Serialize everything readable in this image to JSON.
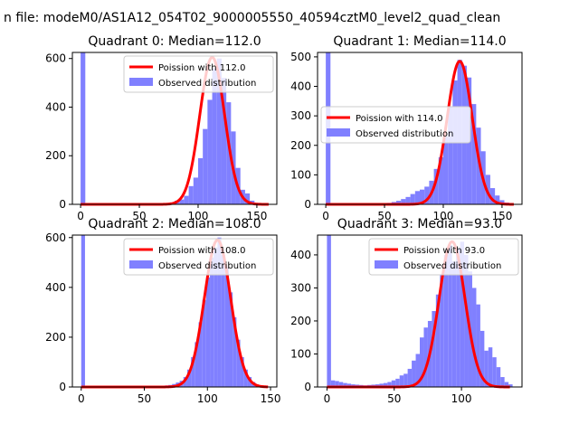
{
  "figure": {
    "suptitle": "n file: modeM0/AS1A12_054T02_9000005550_40594cztM0_level2_quad_clean"
  },
  "chart_data": [
    {
      "type": "bar",
      "title": "Quadrant 0: Median=112.0",
      "xlim": [
        -7,
        167
      ],
      "ylim": [
        0,
        625
      ],
      "xticks": [
        0,
        50,
        100,
        150
      ],
      "yticks": [
        0,
        200,
        400,
        600
      ],
      "median": 112.0,
      "legend_position": "top-right",
      "series": [
        {
          "name": "Poission with 112.0",
          "kind": "line",
          "color": "#ff0000",
          "lambda": 112,
          "peak": 605,
          "x_range": [
            0,
            160
          ]
        },
        {
          "name": "Observed distribution",
          "kind": "histogram",
          "color": "#8080ff",
          "bin_width": 4,
          "bins": [
            [
              0,
              625
            ],
            [
              40,
              1
            ],
            [
              44,
              1
            ],
            [
              48,
              1
            ],
            [
              52,
              1
            ],
            [
              56,
              1
            ],
            [
              60,
              1
            ],
            [
              64,
              1
            ],
            [
              68,
              1
            ],
            [
              72,
              4
            ],
            [
              76,
              8
            ],
            [
              80,
              15
            ],
            [
              84,
              20
            ],
            [
              88,
              35
            ],
            [
              92,
              75
            ],
            [
              96,
              110
            ],
            [
              100,
              190
            ],
            [
              104,
              310
            ],
            [
              108,
              430
            ],
            [
              112,
              560
            ],
            [
              116,
              600
            ],
            [
              120,
              520
            ],
            [
              124,
              420
            ],
            [
              128,
              300
            ],
            [
              132,
              150
            ],
            [
              136,
              60
            ],
            [
              140,
              45
            ],
            [
              144,
              15
            ],
            [
              148,
              6
            ],
            [
              152,
              3
            ],
            [
              156,
              1
            ]
          ]
        }
      ]
    },
    {
      "type": "bar",
      "title": "Quadrant 1: Median=114.0",
      "xlim": [
        -7,
        167
      ],
      "ylim": [
        0,
        515
      ],
      "xticks": [
        0,
        50,
        100,
        150
      ],
      "yticks": [
        0,
        100,
        200,
        300,
        400,
        500
      ],
      "median": 114.0,
      "legend_position": "center-left",
      "series": [
        {
          "name": "Poission with 114.0",
          "kind": "line",
          "color": "#ff0000",
          "lambda": 114,
          "peak": 485,
          "x_range": [
            0,
            160
          ]
        },
        {
          "name": "Observed distribution",
          "kind": "histogram",
          "color": "#8080ff",
          "bin_width": 4,
          "bins": [
            [
              0,
              515
            ],
            [
              48,
              3
            ],
            [
              52,
              5
            ],
            [
              56,
              8
            ],
            [
              60,
              12
            ],
            [
              64,
              18
            ],
            [
              68,
              25
            ],
            [
              72,
              35
            ],
            [
              76,
              45
            ],
            [
              80,
              50
            ],
            [
              84,
              60
            ],
            [
              88,
              80
            ],
            [
              92,
              120
            ],
            [
              96,
              160
            ],
            [
              100,
              230
            ],
            [
              104,
              330
            ],
            [
              108,
              420
            ],
            [
              112,
              490
            ],
            [
              116,
              470
            ],
            [
              120,
              430
            ],
            [
              124,
              340
            ],
            [
              128,
              260
            ],
            [
              132,
              180
            ],
            [
              136,
              100
            ],
            [
              140,
              55
            ],
            [
              144,
              30
            ],
            [
              148,
              14
            ],
            [
              152,
              6
            ],
            [
              156,
              2
            ]
          ]
        }
      ]
    },
    {
      "type": "bar",
      "title": "Quadrant 2: Median=108.0",
      "xlim": [
        -7,
        155
      ],
      "ylim": [
        0,
        610
      ],
      "xticks": [
        0,
        50,
        100,
        150
      ],
      "yticks": [
        0,
        200,
        400,
        600
      ],
      "median": 108.0,
      "legend_position": "top-right",
      "series": [
        {
          "name": "Poission with 108.0",
          "kind": "line",
          "color": "#ff0000",
          "lambda": 108,
          "peak": 590,
          "x_range": [
            0,
            148
          ]
        },
        {
          "name": "Observed distribution",
          "kind": "histogram",
          "color": "#8080ff",
          "bin_width": 3,
          "bins": [
            [
              0,
              610
            ],
            [
              48,
              1
            ],
            [
              51,
              1
            ],
            [
              54,
              1
            ],
            [
              57,
              2
            ],
            [
              60,
              3
            ],
            [
              63,
              4
            ],
            [
              66,
              6
            ],
            [
              69,
              8
            ],
            [
              72,
              12
            ],
            [
              75,
              18
            ],
            [
              78,
              25
            ],
            [
              81,
              40
            ],
            [
              84,
              70
            ],
            [
              87,
              120
            ],
            [
              90,
              180
            ],
            [
              93,
              260
            ],
            [
              96,
              350
            ],
            [
              99,
              440
            ],
            [
              102,
              520
            ],
            [
              105,
              560
            ],
            [
              108,
              600
            ],
            [
              111,
              530
            ],
            [
              114,
              480
            ],
            [
              117,
              380
            ],
            [
              120,
              280
            ],
            [
              123,
              190
            ],
            [
              126,
              120
            ],
            [
              129,
              70
            ],
            [
              132,
              40
            ],
            [
              135,
              20
            ],
            [
              138,
              10
            ],
            [
              141,
              4
            ],
            [
              144,
              2
            ]
          ]
        }
      ]
    },
    {
      "type": "bar",
      "title": "Quadrant 3: Median=93.0",
      "xlim": [
        -7,
        145
      ],
      "ylim": [
        0,
        460
      ],
      "xticks": [
        0,
        50,
        100
      ],
      "yticks": [
        0,
        100,
        200,
        300,
        400
      ],
      "median": 93.0,
      "legend_position": "top-right",
      "series": [
        {
          "name": "Poission with 93.0",
          "kind": "line",
          "color": "#ff0000",
          "lambda": 93,
          "peak": 440,
          "x_range": [
            0,
            136
          ]
        },
        {
          "name": "Observed distribution",
          "kind": "histogram",
          "color": "#8080ff",
          "bin_width": 3,
          "bins": [
            [
              0,
              460
            ],
            [
              3,
              20
            ],
            [
              6,
              18
            ],
            [
              9,
              15
            ],
            [
              12,
              12
            ],
            [
              15,
              10
            ],
            [
              18,
              8
            ],
            [
              21,
              7
            ],
            [
              24,
              6
            ],
            [
              27,
              5
            ],
            [
              30,
              6
            ],
            [
              33,
              7
            ],
            [
              36,
              8
            ],
            [
              39,
              10
            ],
            [
              42,
              12
            ],
            [
              45,
              15
            ],
            [
              48,
              20
            ],
            [
              51,
              25
            ],
            [
              54,
              35
            ],
            [
              57,
              40
            ],
            [
              60,
              55
            ],
            [
              63,
              80
            ],
            [
              66,
              100
            ],
            [
              69,
              150
            ],
            [
              72,
              180
            ],
            [
              75,
              200
            ],
            [
              78,
              230
            ],
            [
              81,
              280
            ],
            [
              84,
              340
            ],
            [
              87,
              400
            ],
            [
              90,
              430
            ],
            [
              93,
              380
            ],
            [
              96,
              420
            ],
            [
              99,
              440
            ],
            [
              102,
              400
            ],
            [
              105,
              350
            ],
            [
              108,
              300
            ],
            [
              111,
              250
            ],
            [
              114,
              170
            ],
            [
              117,
              110
            ],
            [
              120,
              120
            ],
            [
              123,
              90
            ],
            [
              126,
              60
            ],
            [
              129,
              30
            ],
            [
              132,
              15
            ],
            [
              135,
              8
            ]
          ]
        }
      ]
    }
  ]
}
